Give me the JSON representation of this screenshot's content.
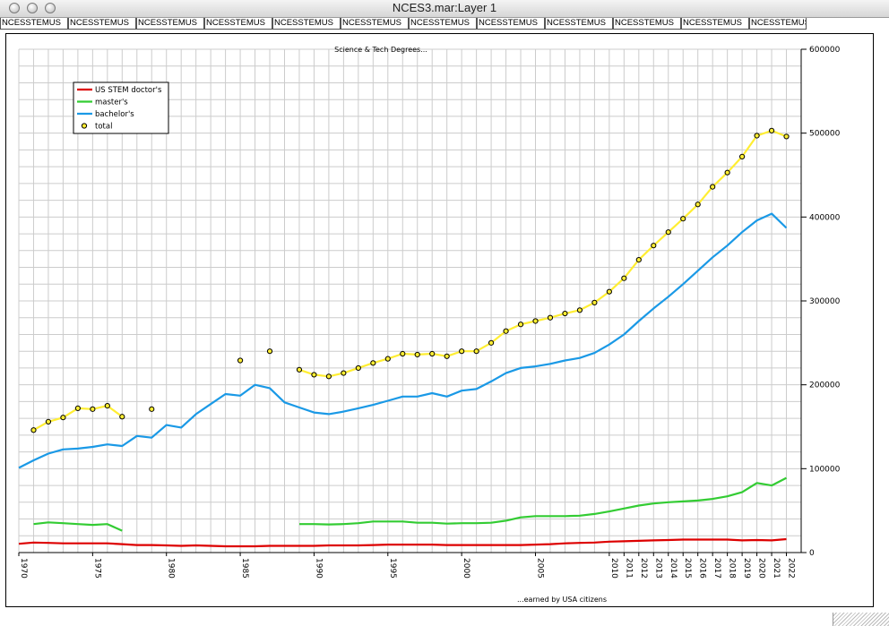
{
  "window": {
    "title": "NCES3.mar:Layer 1"
  },
  "tabs": [
    "NCESSTEMUS",
    "NCESSTEMUS",
    "NCESSTEMUS",
    "NCESSTEMUS",
    "NCESSTEMUS",
    "NCESSTEMUS",
    "NCESSTEMUS",
    "NCESSTEMUS",
    "NCESSTEMUS",
    "NCESSTEMUS",
    "NCESSTEMUS",
    "NCESSTEMUS"
  ],
  "chart_data": {
    "type": "line",
    "title": "Science & Tech Degrees...",
    "xlabel": "...earned by USA citizens",
    "ylabel": "",
    "xlim": [
      1970,
      2023
    ],
    "ylim": [
      0,
      600000
    ],
    "y_ticks": [
      0,
      100000,
      200000,
      300000,
      400000,
      500000,
      600000
    ],
    "y_axis_side": "right",
    "x_tick_labels": [
      "1970",
      "1975",
      "1980",
      "1985",
      "1990",
      "1995",
      "2000",
      "2005",
      "2010",
      "2011",
      "2012",
      "2013",
      "2014",
      "2015",
      "2016",
      "2017",
      "2018",
      "2019",
      "2020",
      "2021",
      "2022"
    ],
    "grid": true,
    "legend": "top-left",
    "series": [
      {
        "name": "US STEM doctor's",
        "color": "#dd0000",
        "style": "line",
        "points": [
          [
            1970,
            10500
          ],
          [
            1971,
            12000
          ],
          [
            1972,
            11500
          ],
          [
            1973,
            11000
          ],
          [
            1974,
            11000
          ],
          [
            1975,
            11000
          ],
          [
            1976,
            11000
          ],
          [
            1977,
            10000
          ],
          [
            1978,
            9000
          ],
          [
            1979,
            9000
          ],
          [
            1980,
            8500
          ],
          [
            1981,
            8000
          ],
          [
            1982,
            8500
          ],
          [
            1983,
            8000
          ],
          [
            1984,
            7500
          ],
          [
            1985,
            7500
          ],
          [
            1986,
            7500
          ],
          [
            1987,
            8000
          ],
          [
            1988,
            8000
          ],
          [
            1989,
            8000
          ],
          [
            1990,
            8000
          ],
          [
            1991,
            8500
          ],
          [
            1992,
            8500
          ],
          [
            1993,
            8500
          ],
          [
            1994,
            9000
          ],
          [
            1995,
            9500
          ],
          [
            1996,
            9500
          ],
          [
            1997,
            9500
          ],
          [
            1998,
            9500
          ],
          [
            1999,
            9000
          ],
          [
            2000,
            9000
          ],
          [
            2001,
            9000
          ],
          [
            2002,
            9000
          ],
          [
            2003,
            9000
          ],
          [
            2004,
            9000
          ],
          [
            2005,
            9500
          ],
          [
            2006,
            10000
          ],
          [
            2007,
            11000
          ],
          [
            2008,
            11500
          ],
          [
            2009,
            12000
          ],
          [
            2010,
            13000
          ],
          [
            2011,
            13500
          ],
          [
            2012,
            14000
          ],
          [
            2013,
            14500
          ],
          [
            2014,
            15000
          ],
          [
            2015,
            15500
          ],
          [
            2016,
            15500
          ],
          [
            2017,
            15500
          ],
          [
            2018,
            15500
          ],
          [
            2019,
            14500
          ],
          [
            2020,
            15000
          ],
          [
            2021,
            14500
          ],
          [
            2022,
            16000
          ]
        ]
      },
      {
        "name": "master's",
        "color": "#33cc33",
        "style": "line",
        "segments": [
          [
            [
              1971,
              34000
            ],
            [
              1972,
              36000
            ],
            [
              1973,
              35000
            ],
            [
              1974,
              34000
            ],
            [
              1975,
              33000
            ],
            [
              1976,
              34000
            ],
            [
              1977,
              26000
            ]
          ],
          [
            [
              1989,
              34000
            ],
            [
              1990,
              34000
            ],
            [
              1991,
              33500
            ],
            [
              1992,
              34000
            ],
            [
              1993,
              35000
            ],
            [
              1994,
              37000
            ],
            [
              1995,
              37000
            ],
            [
              1996,
              37000
            ],
            [
              1997,
              35500
            ],
            [
              1998,
              35500
            ],
            [
              1999,
              34500
            ],
            [
              2000,
              35000
            ],
            [
              2001,
              35000
            ],
            [
              2002,
              35500
            ],
            [
              2003,
              38000
            ],
            [
              2004,
              42000
            ],
            [
              2005,
              43500
            ],
            [
              2006,
              43500
            ],
            [
              2007,
              43500
            ],
            [
              2008,
              44000
            ],
            [
              2009,
              46000
            ],
            [
              2010,
              49000
            ],
            [
              2011,
              52500
            ],
            [
              2012,
              56000
            ],
            [
              2013,
              58500
            ],
            [
              2014,
              60000
            ],
            [
              2015,
              61000
            ],
            [
              2016,
              62000
            ],
            [
              2017,
              64000
            ],
            [
              2018,
              67000
            ],
            [
              2019,
              72000
            ],
            [
              2020,
              83000
            ],
            [
              2021,
              80000
            ],
            [
              2022,
              89000
            ]
          ]
        ]
      },
      {
        "name": "bachelor's",
        "color": "#1a99e6",
        "style": "line",
        "points": [
          [
            1970,
            101000
          ],
          [
            1971,
            110000
          ],
          [
            1972,
            118000
          ],
          [
            1973,
            123000
          ],
          [
            1974,
            124000
          ],
          [
            1975,
            126000
          ],
          [
            1976,
            129000
          ],
          [
            1977,
            127000
          ],
          [
            1978,
            139000
          ],
          [
            1979,
            137000
          ],
          [
            1980,
            152000
          ],
          [
            1981,
            149000
          ],
          [
            1982,
            165000
          ],
          [
            1983,
            177000
          ],
          [
            1984,
            189000
          ],
          [
            1985,
            187000
          ],
          [
            1986,
            200000
          ],
          [
            1987,
            196000
          ],
          [
            1988,
            179000
          ],
          [
            1989,
            173000
          ],
          [
            1990,
            167000
          ],
          [
            1991,
            165000
          ],
          [
            1992,
            168000
          ],
          [
            1993,
            172000
          ],
          [
            1994,
            176000
          ],
          [
            1995,
            181000
          ],
          [
            1996,
            186000
          ],
          [
            1997,
            186000
          ],
          [
            1998,
            190000
          ],
          [
            1999,
            186000
          ],
          [
            2000,
            193000
          ],
          [
            2001,
            195000
          ],
          [
            2002,
            204000
          ],
          [
            2003,
            214000
          ],
          [
            2004,
            220000
          ],
          [
            2005,
            222000
          ],
          [
            2006,
            225000
          ],
          [
            2007,
            229000
          ],
          [
            2008,
            232000
          ],
          [
            2009,
            238000
          ],
          [
            2010,
            248000
          ],
          [
            2011,
            260000
          ],
          [
            2012,
            276000
          ],
          [
            2013,
            291000
          ],
          [
            2014,
            305000
          ],
          [
            2015,
            320000
          ],
          [
            2016,
            336000
          ],
          [
            2017,
            352000
          ],
          [
            2018,
            366000
          ],
          [
            2019,
            382000
          ],
          [
            2020,
            396000
          ],
          [
            2021,
            404000
          ],
          [
            2022,
            387000
          ]
        ]
      },
      {
        "name": "total",
        "color": "#ffee33",
        "marker_color": "#000000",
        "style": "line+circle",
        "segments": [
          [
            [
              1971,
              146000
            ],
            [
              1972,
              156000
            ],
            [
              1973,
              161000
            ],
            [
              1974,
              172000
            ],
            [
              1975,
              171000
            ],
            [
              1976,
              175000
            ],
            [
              1977,
              162000
            ]
          ],
          [
            [
              1979,
              171000
            ]
          ],
          [
            [
              1985,
              229000
            ]
          ],
          [
            [
              1987,
              240000
            ]
          ],
          [
            [
              1989,
              218000
            ],
            [
              1990,
              212000
            ],
            [
              1991,
              210000
            ],
            [
              1992,
              214000
            ],
            [
              1993,
              220000
            ],
            [
              1994,
              226000
            ],
            [
              1995,
              231000
            ],
            [
              1996,
              237000
            ],
            [
              1997,
              236000
            ],
            [
              1998,
              237000
            ],
            [
              1999,
              234000
            ],
            [
              2000,
              240000
            ],
            [
              2001,
              240000
            ],
            [
              2002,
              250000
            ],
            [
              2003,
              264000
            ],
            [
              2004,
              272000
            ],
            [
              2005,
              276000
            ],
            [
              2006,
              280000
            ],
            [
              2007,
              285000
            ],
            [
              2008,
              289000
            ],
            [
              2009,
              298000
            ],
            [
              2010,
              311000
            ],
            [
              2011,
              327000
            ],
            [
              2012,
              349000
            ],
            [
              2013,
              366000
            ],
            [
              2014,
              382000
            ],
            [
              2015,
              398000
            ],
            [
              2016,
              415000
            ],
            [
              2017,
              436000
            ],
            [
              2018,
              453000
            ],
            [
              2019,
              472000
            ],
            [
              2020,
              497000
            ],
            [
              2021,
              503000
            ],
            [
              2022,
              496000
            ]
          ]
        ]
      }
    ]
  }
}
